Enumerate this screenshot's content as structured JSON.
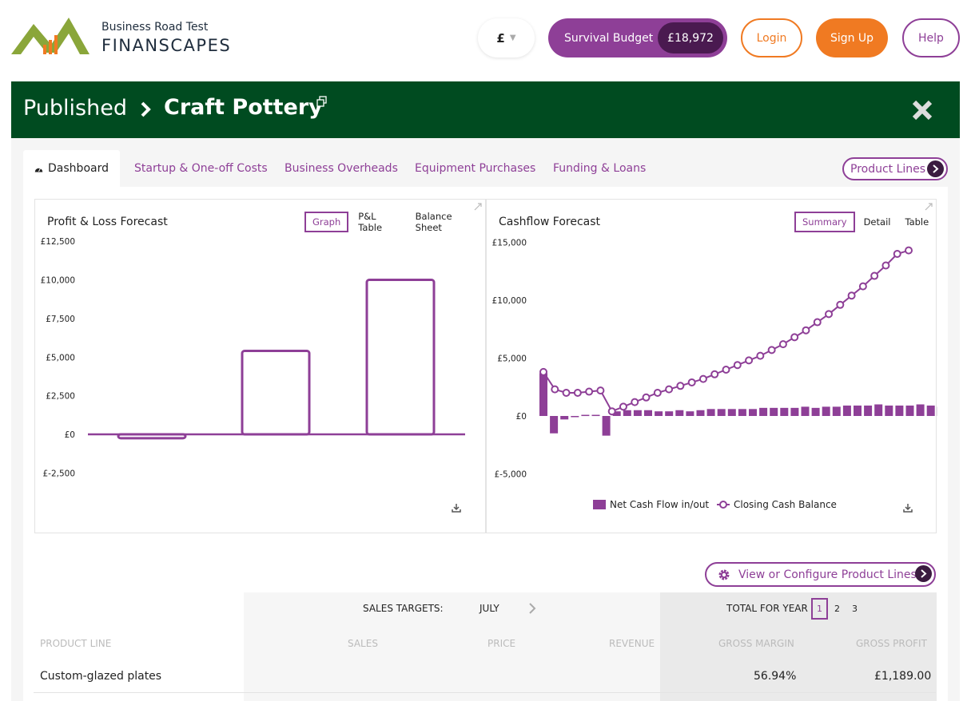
{
  "brand": {
    "small": "Business Road Test",
    "big": "FINANSCAPES"
  },
  "header": {
    "currency": "£",
    "survival_label": "Survival Budget",
    "survival_value": "£18,972",
    "login": "Login",
    "signup": "Sign Up",
    "help": "Help"
  },
  "breadcrumb": {
    "parent": "Published",
    "current": "Craft Pottery"
  },
  "tabs": [
    {
      "label": "Dashboard",
      "active": true
    },
    {
      "label": "Startup & One-off Costs"
    },
    {
      "label": "Business Overheads"
    },
    {
      "label": "Equipment Purchases"
    },
    {
      "label": "Funding & Loans"
    }
  ],
  "product_lines_button": "Product Lines",
  "pl_card": {
    "title": "Profit & Loss Forecast",
    "options": [
      "Graph",
      "P&L Table",
      "Balance Sheet"
    ],
    "selected": "Graph"
  },
  "cf_card": {
    "title": "Cashflow Forecast",
    "options": [
      "Summary",
      "Detail",
      "Table"
    ],
    "selected": "Summary",
    "legend": [
      "Net Cash Flow in/out",
      "Closing Cash Balance"
    ]
  },
  "chart_data": [
    {
      "type": "bar",
      "title": "Profit & Loss Forecast",
      "ylim": [
        -2500,
        12500
      ],
      "yticks": [
        12500,
        10000,
        7500,
        5000,
        2500,
        0,
        -2500
      ],
      "ytick_labels": [
        "£12,500",
        "£10,000",
        "£7,500",
        "£5,000",
        "£2,500",
        "£0",
        "£-2,500"
      ],
      "values": [
        -250,
        5400,
        10000
      ],
      "style": "outline",
      "color": "#8e3f97"
    },
    {
      "type": "bar+line",
      "title": "Cashflow Forecast",
      "ylim": [
        -5000,
        15000
      ],
      "yticks": [
        15000,
        10000,
        5000,
        0,
        -5000
      ],
      "ytick_labels": [
        "£15,000",
        "£10,000",
        "£5,000",
        "£0",
        "£-5,000"
      ],
      "series": [
        {
          "name": "Net Cash Flow in/out",
          "type": "bar",
          "values": [
            3700,
            -1500,
            -300,
            0,
            100,
            100,
            -1700,
            400,
            500,
            500,
            500,
            400,
            400,
            500,
            400,
            500,
            600,
            600,
            600,
            600,
            600,
            700,
            700,
            700,
            700,
            800,
            700,
            800,
            800,
            900,
            900,
            900,
            1000,
            900,
            900,
            900,
            1000,
            900,
            800,
            700
          ]
        },
        {
          "name": "Closing Cash Balance",
          "type": "line",
          "values": [
            3800,
            2300,
            2000,
            2000,
            2100,
            2200,
            400,
            800,
            1200,
            1600,
            2000,
            2300,
            2600,
            2900,
            3200,
            3600,
            4000,
            4400,
            4800,
            5200,
            5700,
            6200,
            6800,
            7400,
            8100,
            8800,
            9600,
            10400,
            11200,
            12100,
            13000,
            14000,
            14300
          ]
        }
      ],
      "color": "#8e3f97"
    }
  ],
  "view_configure_button": "View or Configure Product Lines",
  "sales_table": {
    "targets_label": "SALES TARGETS:",
    "month": "JULY",
    "total_label": "TOTAL FOR YEAR",
    "years": [
      "1",
      "2",
      "3"
    ],
    "selected_year": "1",
    "columns": [
      "PRODUCT LINE",
      "SALES",
      "PRICE",
      "REVENUE",
      "GROSS MARGIN",
      "GROSS PROFIT"
    ],
    "rows": [
      {
        "product": "Custom-glazed plates",
        "sales": "",
        "price": "",
        "revenue": "",
        "margin": "56.94%",
        "profit": "£1,189.00"
      }
    ]
  }
}
